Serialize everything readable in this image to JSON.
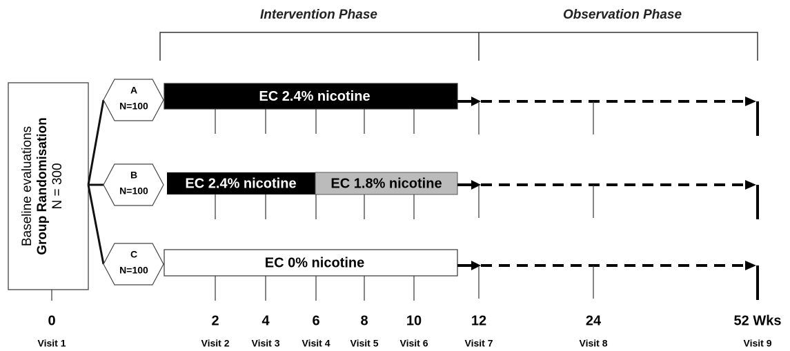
{
  "phases": [
    "Intervention Phase",
    "Observation Phase"
  ],
  "baseline": [
    "Baseline evaluations",
    "Group Randomisation",
    "N = 300"
  ],
  "groups": [
    {
      "label": "A",
      "n": "N=100",
      "bars": [
        "EC 2.4% nicotine"
      ]
    },
    {
      "label": "B",
      "n": "N=100",
      "bars": [
        "EC 2.4% nicotine",
        "EC 1.8% nicotine"
      ]
    },
    {
      "label": "C",
      "n": "N=100",
      "bars": [
        "EC 0% nicotine"
      ]
    }
  ],
  "weeks": [
    "0",
    "2",
    "4",
    "6",
    "8",
    "10",
    "12",
    "24",
    "52 Wks"
  ],
  "visits": [
    "Visit 1",
    "Visit 2",
    "Visit 3",
    "Visit 4",
    "Visit 5",
    "Visit 6",
    "Visit 7",
    "Visit 8",
    "Visit 9"
  ]
}
